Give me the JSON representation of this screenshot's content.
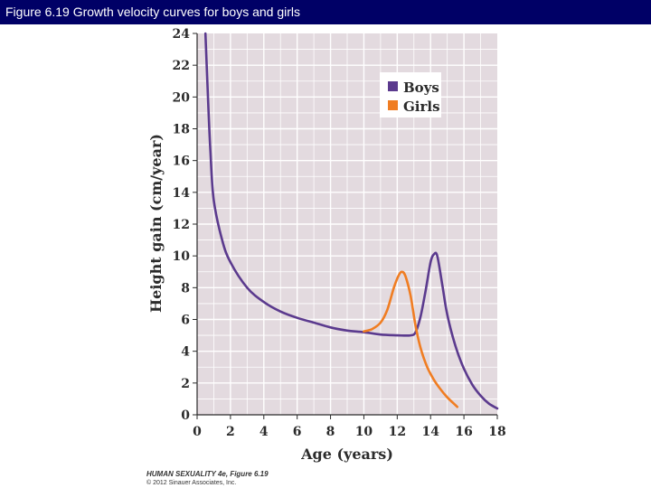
{
  "slide": {
    "title": "Figure 6.19  Growth velocity curves for boys and girls"
  },
  "credit": {
    "line1": "HUMAN SEXUALITY 4e, Figure 6.19",
    "line2": "© 2012 Sinauer Associates, Inc."
  },
  "colors": {
    "title_bar": "#000066",
    "plot_background": "#e3dadf",
    "grid": "#ffffff",
    "boys": "#5b3a8e",
    "girls": "#f07d22"
  },
  "chart_data": {
    "type": "line",
    "title": "",
    "xlabel": "Age (years)",
    "ylabel": "Height gain (cm/year)",
    "xlim": [
      0,
      18
    ],
    "ylim": [
      0,
      24
    ],
    "x_ticks": [
      "0",
      "2",
      "4",
      "6",
      "8",
      "10",
      "12",
      "14",
      "16",
      "18"
    ],
    "y_ticks": [
      "0",
      "2",
      "4",
      "6",
      "8",
      "10",
      "12",
      "14",
      "16",
      "18",
      "20",
      "22",
      "24"
    ],
    "grid": true,
    "legend": {
      "position": "top-right"
    },
    "series": [
      {
        "name": "Boys",
        "color": "#5b3a8e",
        "points": [
          [
            0.5,
            24
          ],
          [
            0.65,
            20
          ],
          [
            0.8,
            16.5
          ],
          [
            1,
            13.5
          ],
          [
            1.5,
            11
          ],
          [
            2,
            9.6
          ],
          [
            3,
            8
          ],
          [
            4,
            7.1
          ],
          [
            5,
            6.5
          ],
          [
            6,
            6.1
          ],
          [
            7,
            5.8
          ],
          [
            8,
            5.5
          ],
          [
            9,
            5.3
          ],
          [
            10,
            5.2
          ],
          [
            11,
            5.05
          ],
          [
            12,
            5.0
          ],
          [
            12.8,
            5.0
          ],
          [
            13.1,
            5.2
          ],
          [
            13.4,
            6.2
          ],
          [
            13.7,
            7.8
          ],
          [
            14.0,
            9.6
          ],
          [
            14.2,
            10.1
          ],
          [
            14.4,
            10.0
          ],
          [
            14.7,
            8.2
          ],
          [
            15,
            6.3
          ],
          [
            15.5,
            4.3
          ],
          [
            16,
            2.9
          ],
          [
            16.5,
            1.9
          ],
          [
            17,
            1.2
          ],
          [
            17.5,
            0.7
          ],
          [
            18,
            0.4
          ]
        ]
      },
      {
        "name": "Girls",
        "color": "#f07d22",
        "points": [
          [
            10,
            5.25
          ],
          [
            10.5,
            5.4
          ],
          [
            11,
            5.8
          ],
          [
            11.4,
            6.6
          ],
          [
            11.8,
            8.0
          ],
          [
            12.1,
            8.8
          ],
          [
            12.3,
            9.0
          ],
          [
            12.5,
            8.7
          ],
          [
            12.8,
            7.5
          ],
          [
            13.1,
            5.6
          ],
          [
            13.4,
            4.2
          ],
          [
            13.8,
            3.0
          ],
          [
            14.2,
            2.2
          ],
          [
            14.6,
            1.6
          ],
          [
            15,
            1.1
          ],
          [
            15.6,
            0.5
          ]
        ]
      }
    ]
  }
}
